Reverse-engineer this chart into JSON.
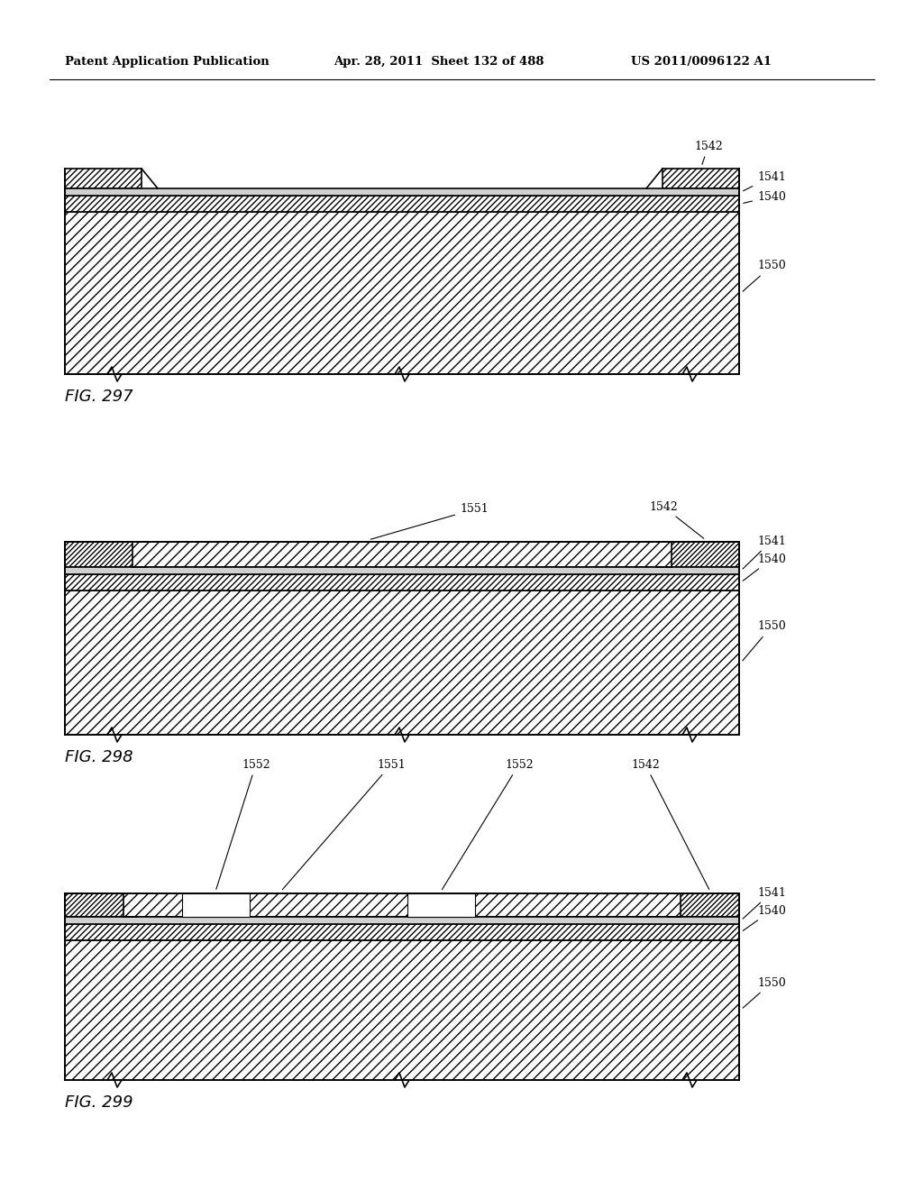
{
  "header_left": "Patent Application Publication",
  "header_mid": "Apr. 28, 2011  Sheet 132 of 488",
  "header_right": "US 2011/0096122 A1",
  "fig1_label": "FIG. 297",
  "fig2_label": "FIG. 298",
  "fig3_label": "FIG. 299",
  "bg_color": "#ffffff",
  "line_color": "#000000"
}
